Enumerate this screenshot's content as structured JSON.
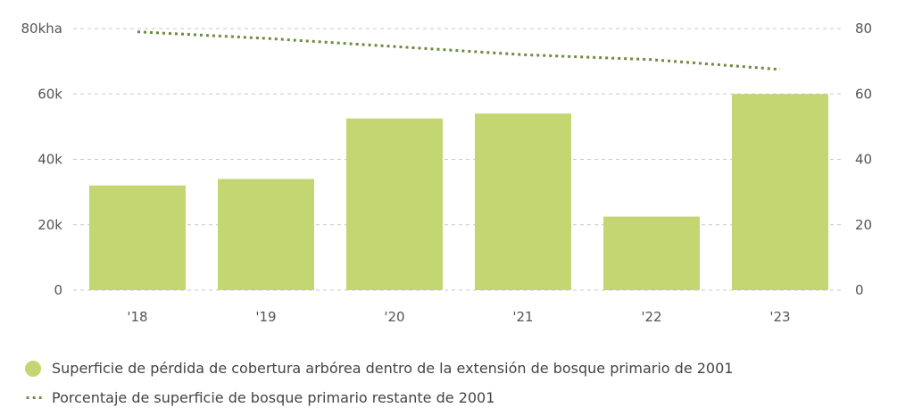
{
  "chart_data": {
    "type": "bar",
    "categories": [
      "'18",
      "'19",
      "'20",
      "'21",
      "'22",
      "'23"
    ],
    "y_left": {
      "ticks": [
        0,
        20000,
        40000,
        60000,
        80000
      ],
      "tick_labels": [
        "0",
        "20k",
        "40k",
        "60k",
        "80kha"
      ],
      "ylim": [
        0,
        80000
      ]
    },
    "y_right": {
      "ticks": [
        0,
        20,
        40,
        60,
        80
      ],
      "tick_labels": [
        "0",
        "20",
        "40",
        "60",
        "80"
      ],
      "ylim": [
        0,
        80
      ]
    },
    "grid": true,
    "legend_position": "bottom-left",
    "series": [
      {
        "name": "Superficie de pérdida de cobertura arbórea dentro de la extensión de bosque primario de 2001",
        "type": "bar",
        "axis": "left",
        "color": "#c4d672",
        "values": [
          32000,
          34000,
          52500,
          54000,
          22500,
          60000
        ]
      },
      {
        "name": "Porcentaje de superficie de bosque primario restante de 2001",
        "type": "line",
        "style": "dotted",
        "axis": "right",
        "color": "#6e8a3e",
        "values": [
          79,
          77,
          74.5,
          72,
          70.5,
          67.5
        ]
      }
    ]
  }
}
